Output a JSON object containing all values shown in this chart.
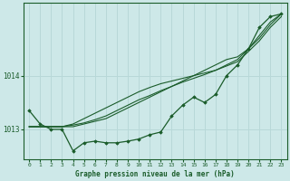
{
  "title": "Graphe pression niveau de la mer (hPa)",
  "bg_color": "#cde8e8",
  "grid_color": "#b8d8d8",
  "line_color": "#1a5c2a",
  "text_color": "#1a5c2a",
  "xlim": [
    -0.5,
    23.5
  ],
  "ylim": [
    1012.45,
    1015.35
  ],
  "yticks": [
    1013,
    1014
  ],
  "xticks": [
    0,
    1,
    2,
    3,
    4,
    5,
    6,
    7,
    8,
    9,
    10,
    11,
    12,
    13,
    14,
    15,
    16,
    17,
    18,
    19,
    20,
    21,
    22,
    23
  ],
  "hours": [
    0,
    1,
    2,
    3,
    4,
    5,
    6,
    7,
    8,
    9,
    10,
    11,
    12,
    13,
    14,
    15,
    16,
    17,
    18,
    19,
    20,
    21,
    22,
    23
  ],
  "pressure_actual": [
    1013.35,
    1013.1,
    1013.0,
    1013.0,
    1012.6,
    1012.75,
    1012.78,
    1012.75,
    1012.75,
    1012.78,
    1012.82,
    1012.9,
    1012.95,
    1013.25,
    1013.45,
    1013.6,
    1013.5,
    1013.65,
    1014.0,
    1014.2,
    1014.5,
    1014.9,
    1015.1,
    1015.15
  ],
  "trend_line1": [
    1013.05,
    1013.05,
    1013.05,
    1013.05,
    1013.05,
    1013.1,
    1013.15,
    1013.2,
    1013.3,
    1013.4,
    1013.5,
    1013.6,
    1013.7,
    1013.8,
    1013.9,
    1014.0,
    1014.1,
    1014.2,
    1014.3,
    1014.35,
    1014.5,
    1014.7,
    1014.95,
    1015.15
  ],
  "trend_line2": [
    1013.05,
    1013.05,
    1013.05,
    1013.05,
    1013.1,
    1013.2,
    1013.3,
    1013.4,
    1013.5,
    1013.6,
    1013.7,
    1013.78,
    1013.85,
    1013.9,
    1013.95,
    1014.0,
    1014.05,
    1014.1,
    1014.2,
    1014.3,
    1014.5,
    1014.75,
    1015.0,
    1015.15
  ],
  "trend_line3": [
    1013.05,
    1013.05,
    1013.05,
    1013.05,
    1013.08,
    1013.12,
    1013.18,
    1013.25,
    1013.35,
    1013.45,
    1013.55,
    1013.63,
    1013.72,
    1013.8,
    1013.88,
    1013.95,
    1014.02,
    1014.1,
    1014.18,
    1014.26,
    1014.45,
    1014.65,
    1014.9,
    1015.1
  ]
}
